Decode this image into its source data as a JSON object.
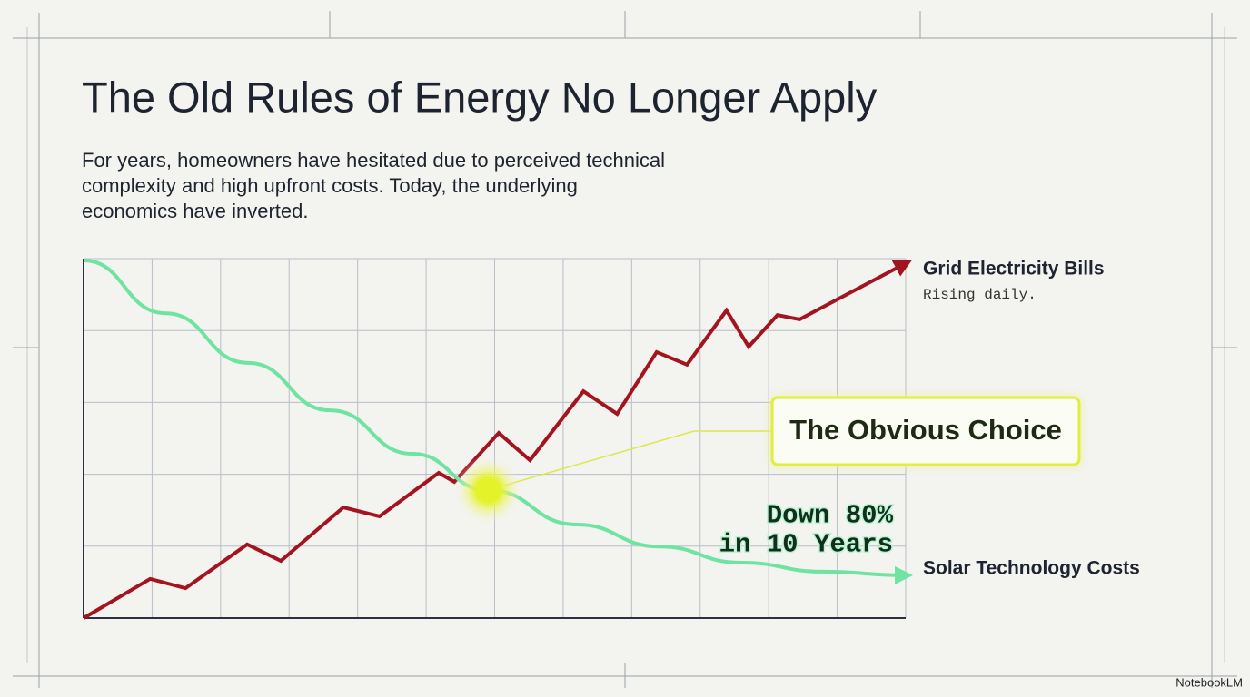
{
  "chart_data": {
    "type": "line",
    "title": "The Old Rules of Energy No Longer Apply",
    "subtitle": [
      "For years, homeowners have hesitated due to perceived technical",
      "complexity and high upfront costs. Today, the underlying",
      "economics have inverted."
    ],
    "xlim": [
      0,
      100
    ],
    "ylim": [
      0,
      100
    ],
    "grid": true,
    "series": [
      {
        "name": "Grid Electricity Bills",
        "note": "Rising daily.",
        "color": "#a3141f",
        "x": [
          0,
          8.1,
          12.4,
          19.9,
          24.0,
          31.6,
          36.0,
          43.2,
          45.1,
          50.5,
          54.3,
          60.8,
          64.9,
          69.7,
          73.4,
          78.2,
          80.9,
          84.4,
          87.1,
          100
        ],
        "values": [
          0,
          10.9,
          8.3,
          20.5,
          15.9,
          30.8,
          28.3,
          40.4,
          37.9,
          51.5,
          43.9,
          63.1,
          56.8,
          74.0,
          70.5,
          85.6,
          75.5,
          84.3,
          83.1,
          98.7
        ]
      },
      {
        "name": "Solar Technology Costs",
        "color": "#6fe3a0",
        "x": [
          0,
          10,
          20,
          30,
          40,
          49.2,
          60,
          70,
          80,
          90,
          100
        ],
        "values": [
          99.5,
          84.8,
          71.0,
          57.8,
          45.7,
          35.6,
          26.0,
          19.9,
          15.4,
          12.9,
          11.9
        ]
      }
    ],
    "annotations": {
      "callout": "The Obvious Choice",
      "change": [
        "Down 80%",
        "in 10 Years"
      ]
    },
    "watermark": "NotebookLM"
  }
}
